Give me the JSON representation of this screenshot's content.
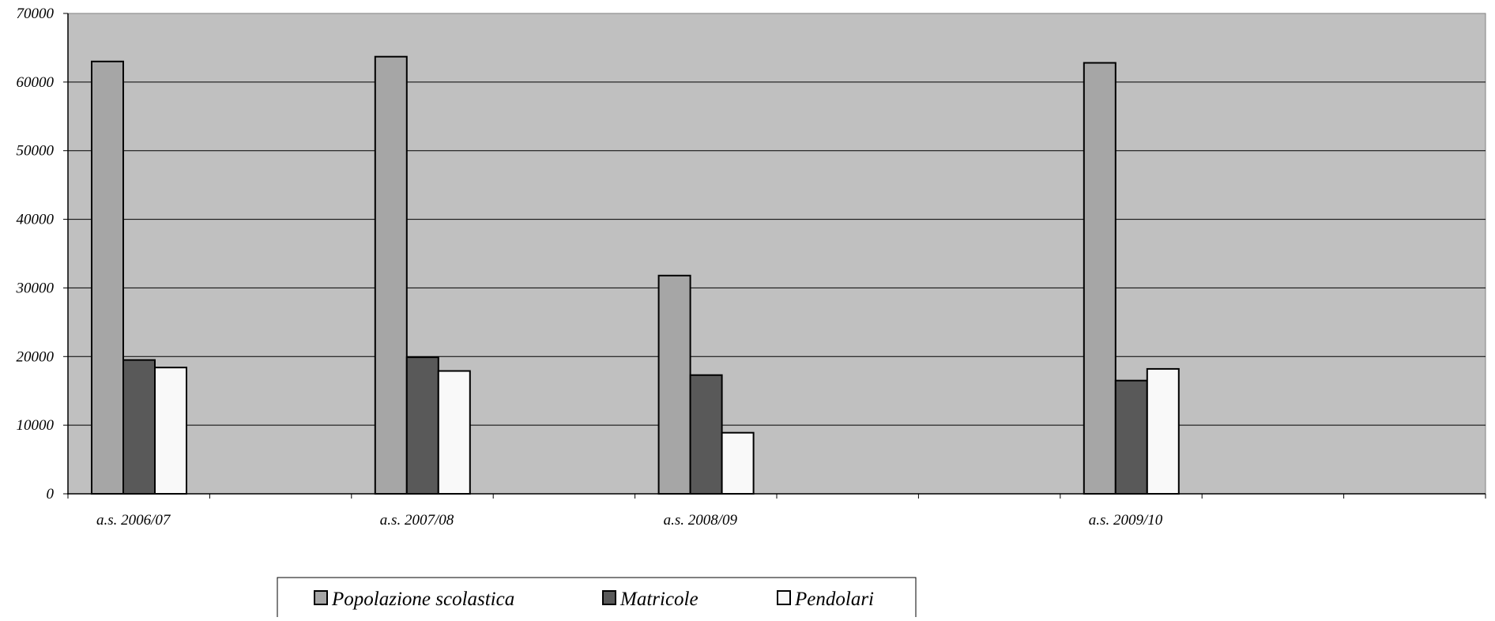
{
  "chart_data": {
    "type": "bar",
    "title": "",
    "xlabel": "",
    "ylabel": "",
    "ylim": [
      0,
      70000
    ],
    "yticks": [
      0,
      10000,
      20000,
      30000,
      40000,
      50000,
      60000,
      70000
    ],
    "grid": true,
    "legend_position": "bottom",
    "plot_background": "#c0c0c0",
    "category_slots": 10,
    "categories": [
      {
        "label": "a.s. 2006/07",
        "slot": 0
      },
      {
        "label": "a.s. 2007/08",
        "slot": 2
      },
      {
        "label": "a.s. 2008/09",
        "slot": 4
      },
      {
        "label": "a.s. 2009/10",
        "slot": 7
      }
    ],
    "series": [
      {
        "name": "Popolazione scolastica",
        "color": "#a6a6a6",
        "values": [
          63000,
          63700,
          31800,
          62800
        ]
      },
      {
        "name": "Matricole",
        "color": "#595959",
        "values": [
          19500,
          19900,
          17300,
          16500
        ]
      },
      {
        "name": "Pendolari",
        "color": "#f9f9f9",
        "values": [
          18400,
          17900,
          8900,
          18200
        ]
      }
    ]
  }
}
